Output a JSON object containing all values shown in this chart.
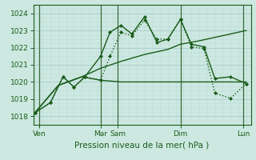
{
  "bg_color": "#cce8e0",
  "grid_major_color": "#a8cccc",
  "grid_minor_color": "#c0dcd8",
  "line_color": "#1a5c1a",
  "xlabel": "Pression niveau de la mer( hPa )",
  "ylim": [
    1017.5,
    1024.5
  ],
  "yticks": [
    1018,
    1019,
    1020,
    1021,
    1022,
    1023,
    1024
  ],
  "xlim": [
    -0.1,
    13.8
  ],
  "xtick_labels": [
    "Ven",
    "Mar",
    "Sam",
    "Dim",
    "Lun"
  ],
  "xtick_positions": [
    0.3,
    4.2,
    5.3,
    9.3,
    13.3
  ],
  "vlines": [
    0.3,
    4.2,
    5.3,
    9.3,
    13.3
  ],
  "series": [
    {
      "x": [
        0.0,
        1.5,
        3.0,
        4.2,
        5.5,
        7.0,
        8.5,
        9.3,
        10.5,
        11.5,
        12.5,
        13.5
      ],
      "y": [
        1018.2,
        1019.8,
        1020.3,
        1020.1,
        1020.0,
        1020.0,
        1020.0,
        1020.0,
        1020.0,
        1020.0,
        1020.0,
        1020.0
      ],
      "style": "-",
      "marker": null,
      "linewidth": 1.0
    },
    {
      "x": [
        0.0,
        1.5,
        3.0,
        4.2,
        5.5,
        7.0,
        8.5,
        9.3,
        10.5,
        11.5,
        12.5,
        13.5
      ],
      "y": [
        1018.2,
        1019.8,
        1020.3,
        1020.8,
        1021.2,
        1021.6,
        1021.9,
        1022.2,
        1022.4,
        1022.6,
        1022.8,
        1023.0
      ],
      "style": "-",
      "marker": null,
      "linewidth": 1.0
    },
    {
      "x": [
        0.0,
        1.0,
        1.8,
        2.5,
        3.2,
        4.2,
        4.8,
        5.5,
        6.2,
        7.0,
        7.8,
        8.5,
        9.3,
        10.0,
        10.8,
        11.5,
        12.5,
        13.5
      ],
      "y": [
        1018.2,
        1018.8,
        1020.3,
        1019.7,
        1020.3,
        1020.1,
        1021.5,
        1022.9,
        1022.7,
        1023.6,
        1022.5,
        1022.5,
        1023.65,
        1022.05,
        1021.95,
        1019.35,
        1019.05,
        1019.9
      ],
      "style": ":",
      "marker": "D",
      "markersize": 2.0,
      "linewidth": 1.0
    },
    {
      "x": [
        0.0,
        1.0,
        1.8,
        2.5,
        3.2,
        4.2,
        4.8,
        5.5,
        6.2,
        7.0,
        7.8,
        8.5,
        9.3,
        10.0,
        10.8,
        11.5,
        12.5,
        13.5
      ],
      "y": [
        1018.2,
        1018.8,
        1020.3,
        1019.7,
        1020.3,
        1021.5,
        1022.9,
        1023.3,
        1022.8,
        1023.8,
        1022.3,
        1022.5,
        1023.65,
        1022.2,
        1022.05,
        1020.2,
        1020.3,
        1019.9
      ],
      "style": "-",
      "marker": "D",
      "markersize": 2.0,
      "linewidth": 1.0
    }
  ]
}
